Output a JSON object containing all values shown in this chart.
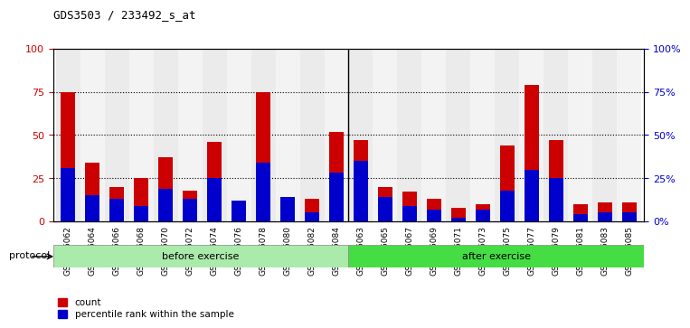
{
  "title": "GDS3503 / 233492_s_at",
  "samples": [
    "GSM306062",
    "GSM306064",
    "GSM306066",
    "GSM306068",
    "GSM306070",
    "GSM306072",
    "GSM306074",
    "GSM306076",
    "GSM306078",
    "GSM306080",
    "GSM306082",
    "GSM306084",
    "GSM306063",
    "GSM306065",
    "GSM306067",
    "GSM306069",
    "GSM306071",
    "GSM306073",
    "GSM306075",
    "GSM306077",
    "GSM306079",
    "GSM306081",
    "GSM306083",
    "GSM306085"
  ],
  "count_values": [
    75,
    34,
    20,
    25,
    37,
    18,
    46,
    7,
    75,
    13,
    13,
    52,
    47,
    20,
    17,
    13,
    8,
    10,
    44,
    79,
    47,
    10,
    11,
    11
  ],
  "percentile_values": [
    31,
    15,
    13,
    9,
    19,
    13,
    25,
    12,
    34,
    14,
    5,
    28,
    35,
    14,
    9,
    7,
    2,
    7,
    18,
    30,
    25,
    4,
    5,
    5
  ],
  "group_labels": [
    "before exercise",
    "after exercise"
  ],
  "group_counts": [
    12,
    12
  ],
  "group_colors": [
    "#AAEAAA",
    "#44DD44"
  ],
  "protocol_label": "protocol",
  "bar_color_red": "#CC0000",
  "bar_color_blue": "#0000CC",
  "ylim": [
    0,
    100
  ],
  "yticks": [
    0,
    25,
    50,
    75,
    100
  ],
  "grid_lines": [
    25,
    50,
    75
  ],
  "left_ylabel_color": "#CC0000",
  "right_ylabel_color": "#0000CC"
}
